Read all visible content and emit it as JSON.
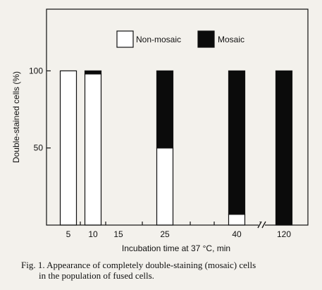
{
  "chart_data": {
    "type": "bar",
    "stacked": true,
    "categories": [
      "5",
      "10",
      "15",
      "25",
      "40",
      "120"
    ],
    "axis_break_between": [
      "40",
      "120"
    ],
    "series": [
      {
        "name": "Non-mosaic",
        "color": "#ffffff",
        "values": [
          100,
          98,
          0,
          50,
          7,
          0
        ]
      },
      {
        "name": "Mosaic",
        "color": "#0b0b0b",
        "values": [
          0,
          2,
          0,
          50,
          93,
          100
        ]
      }
    ],
    "xlabel": "Incubation time at 37 °C, min",
    "ylabel": "Double-stained cells (%)",
    "ylim": [
      0,
      140
    ],
    "yticks": [
      50,
      100
    ],
    "grid": false,
    "legend_position": "top-right"
  },
  "caption": {
    "line1": "Fig. 1. Appearance of completely double-staining (mosaic) cells",
    "line2": "in the population of fused cells."
  }
}
